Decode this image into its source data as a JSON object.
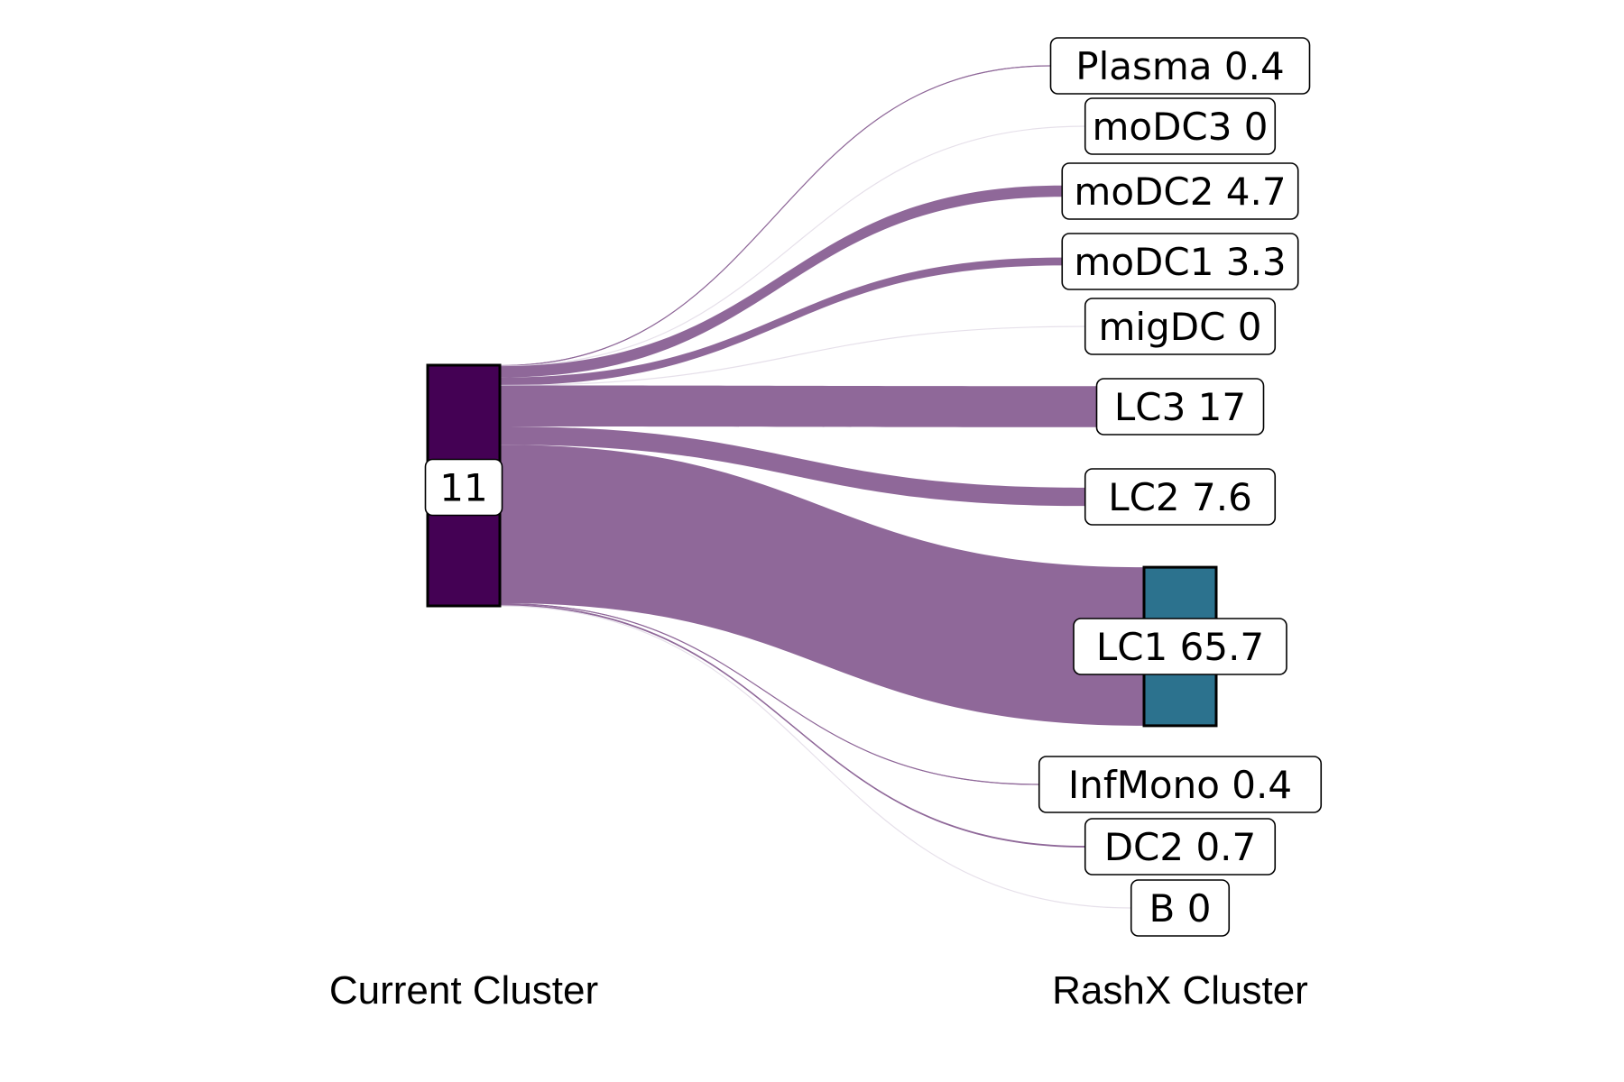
{
  "chart_data": {
    "type": "sankey",
    "source": {
      "label": "11",
      "color": "#440154"
    },
    "axis_labels": {
      "left": "Current Cluster",
      "right": "RashX Cluster"
    },
    "flow_color": "#8f6899",
    "highlight_color": "#2c728e",
    "targets": [
      {
        "name": "Plasma",
        "value": 0.4,
        "label": "Plasma 0.4"
      },
      {
        "name": "moDC3",
        "value": 0,
        "label": "moDC3 0"
      },
      {
        "name": "moDC2",
        "value": 4.7,
        "label": "moDC2 4.7"
      },
      {
        "name": "moDC1",
        "value": 3.3,
        "label": "moDC1 3.3"
      },
      {
        "name": "migDC",
        "value": 0,
        "label": "migDC 0"
      },
      {
        "name": "LC3",
        "value": 17,
        "label": "LC3 17"
      },
      {
        "name": "LC2",
        "value": 7.6,
        "label": "LC2 7.6"
      },
      {
        "name": "LC1",
        "value": 65.7,
        "label": "LC1 65.7",
        "highlight": true
      },
      {
        "name": "InfMono",
        "value": 0.4,
        "label": "InfMono 0.4"
      },
      {
        "name": "DC2",
        "value": 0.7,
        "label": "DC2 0.7"
      },
      {
        "name": "B",
        "value": 0,
        "label": "B 0"
      }
    ]
  }
}
